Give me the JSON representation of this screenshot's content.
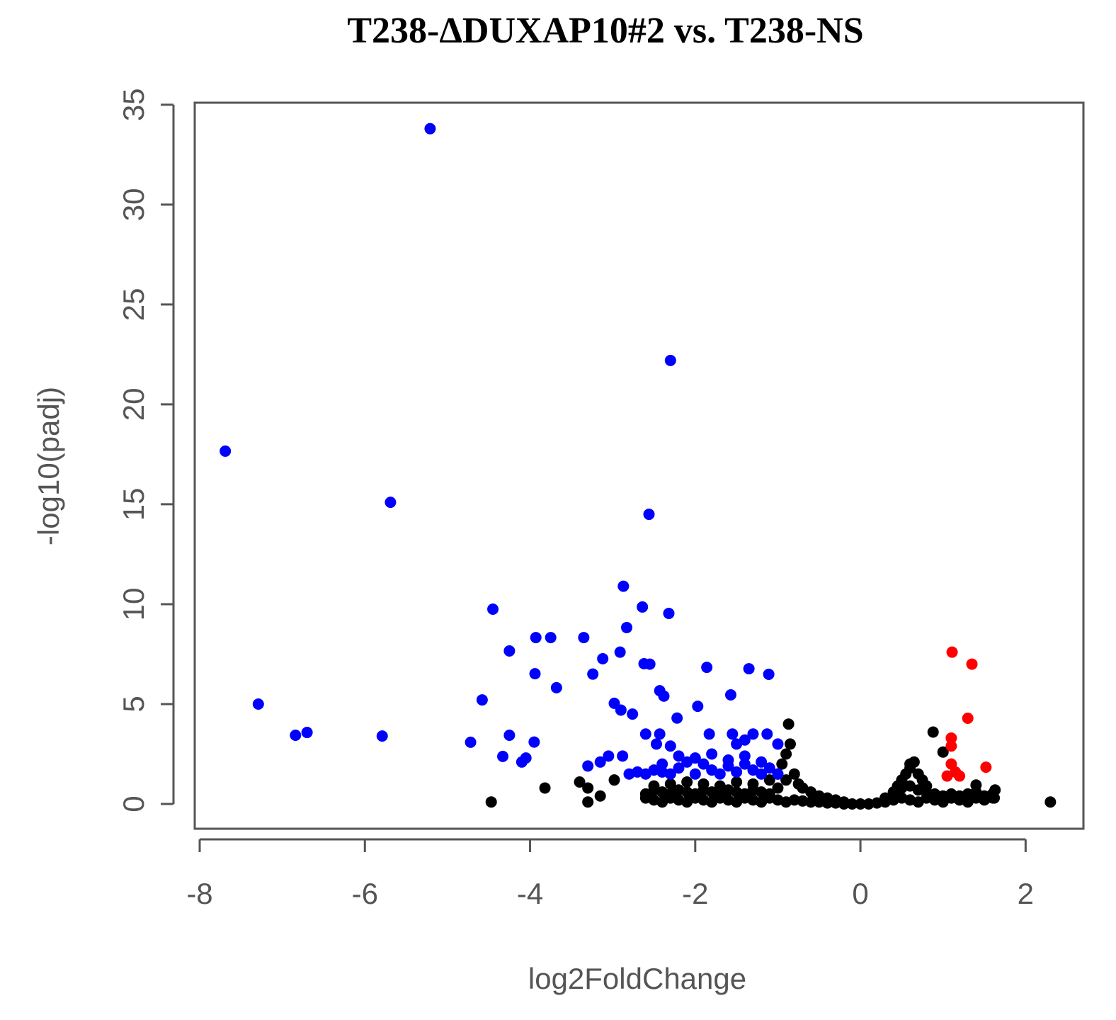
{
  "chart_data": {
    "type": "scatter",
    "title": "T238-ΔDUXAP10#2 vs. T238-NS",
    "x_label": "log2FoldChange",
    "y_label": "-log10(padj)",
    "xlim": [
      -8.06,
      2.7
    ],
    "ylim": [
      -1.24,
      35.1
    ],
    "xticks": [
      -8,
      -6,
      -4,
      -2,
      0,
      2
    ],
    "yticks": [
      0,
      5,
      10,
      15,
      20,
      25,
      30,
      35
    ],
    "series": [
      {
        "color": "#000000",
        "x": [
          -2.6,
          -2.5,
          -2.4,
          -2.3,
          -2.2,
          -2.1,
          -2.0,
          -1.9,
          -1.8,
          -1.7,
          -1.6,
          -1.5,
          -1.4,
          -1.3,
          -1.2,
          -1.1,
          -1.0,
          -0.9,
          -0.8,
          -0.7,
          -0.6,
          -0.5,
          -0.4,
          -0.3,
          -0.2,
          -0.1,
          0,
          0.1,
          0.2,
          0.3,
          0.4,
          0.5,
          0.6,
          0.7,
          0.8,
          0.9,
          1.0,
          1.1,
          1.2,
          1.3,
          1.4,
          1.5,
          1.6,
          -2.6,
          -2.5,
          -2.4,
          -2.3,
          -2.2,
          -2.1,
          -2.0,
          -1.9,
          -1.8,
          -1.7,
          -1.6,
          -1.5,
          -1.4,
          -1.3,
          -1.2,
          -1.1,
          -1.0,
          0.4,
          0.5,
          0.6,
          0.7,
          0.8,
          0.9,
          1.0,
          1.1,
          1.2,
          1.3,
          1.4,
          1.5,
          1.6,
          -2.5,
          -2.3,
          -2.1,
          -1.9,
          -1.7,
          -1.5,
          -1.3,
          -1.1,
          -1.0,
          -0.95,
          -0.9,
          -0.85,
          -0.9,
          -0.8,
          -0.75,
          -0.7,
          -0.6,
          -0.5,
          -0.4,
          -0.3,
          -0.2,
          0.3,
          0.4,
          0.45,
          0.5,
          0.55,
          0.6,
          0.7,
          0.75,
          0.8,
          -4.47,
          -3.82,
          -3.4,
          -3.3,
          -3.3,
          -3.15,
          -2.98,
          2.3,
          -0.87,
          0.88,
          1.0,
          0.65,
          0.6,
          1.4,
          1.63,
          1.62
        ],
        "values": [
          0.3,
          0.2,
          0.1,
          0.3,
          0.2,
          0.1,
          0.3,
          0.2,
          0.1,
          0.3,
          0.2,
          0.1,
          0.3,
          0.2,
          0.1,
          0.3,
          0.2,
          0.1,
          0.2,
          0.15,
          0.1,
          0.1,
          0.05,
          0.05,
          0,
          0,
          0,
          0,
          0.05,
          0.1,
          0.2,
          0.3,
          0.2,
          0.1,
          0.3,
          0.2,
          0.1,
          0.3,
          0.2,
          0.1,
          0.3,
          0.2,
          0.3,
          0.5,
          0.7,
          0.6,
          0.5,
          0.7,
          0.6,
          0.5,
          0.7,
          0.6,
          0.5,
          0.7,
          0.6,
          0.5,
          0.7,
          0.6,
          0.5,
          0.8,
          0.6,
          0.8,
          0.9,
          0.7,
          0.6,
          0.5,
          0.4,
          0.5,
          0.4,
          0.5,
          0.6,
          0.4,
          0.5,
          0.9,
          1.0,
          1.1,
          1.0,
          0.9,
          1.1,
          1.0,
          1.2,
          1.5,
          2.0,
          2.5,
          3.0,
          1.2,
          1.5,
          1.0,
          0.8,
          0.6,
          0.4,
          0.3,
          0.2,
          0.1,
          0.3,
          0.6,
          0.9,
          1.2,
          1.5,
          1.8,
          1.5,
          1.2,
          0.9,
          0.1,
          0.8,
          1.1,
          0.8,
          0.1,
          0.4,
          1.2,
          0.1,
          4.0,
          3.6,
          2.6,
          2.1,
          2.0,
          0.95,
          0.7,
          0.3
        ]
      },
      {
        "color": "#0000ff",
        "x": [
          -5.21,
          -2.3,
          -7.69,
          -5.69,
          -2.56,
          -2.87,
          -4.45,
          -2.64,
          -2.32,
          -2.83,
          -3.93,
          -3.75,
          -3.35,
          -4.25,
          -2.91,
          -3.12,
          -2.62,
          -2.55,
          -1.86,
          -1.35,
          -1.11,
          -3.94,
          -3.24,
          -3.68,
          -2.43,
          -2.38,
          -1.57,
          -4.58,
          -7.29,
          -2.98,
          -2.9,
          -2.76,
          -1.97,
          -2.22,
          -6.84,
          -6.7,
          -5.79,
          -4.72,
          -4.25,
          -3.95,
          -4.33,
          -4.05,
          -4.1,
          -2.6,
          -2.43,
          -1.83,
          -1.55,
          -1.3,
          -1.13,
          -2.47,
          -2.3,
          -1.5,
          -1.4,
          -1.0,
          -3.3,
          -3.15,
          -3.05,
          -2.88,
          -2.8,
          -2.7,
          -2.6,
          -2.5,
          -2.4,
          -2.3,
          -2.2,
          -2.1,
          -2.0,
          -1.9,
          -1.8,
          -1.7,
          -1.6,
          -1.5,
          -1.4,
          -1.3,
          -1.2,
          -1.1,
          -1.0,
          -2.4,
          -2.2,
          -2.0,
          -1.8,
          -1.6,
          -1.4,
          -1.2
        ],
        "values": [
          33.8,
          22.2,
          17.66,
          15.1,
          14.5,
          10.9,
          9.75,
          9.86,
          9.54,
          8.83,
          8.33,
          8.33,
          8.33,
          7.66,
          7.6,
          7.27,
          7.02,
          7.0,
          6.84,
          6.77,
          6.49,
          6.52,
          6.5,
          5.82,
          5.67,
          5.4,
          5.46,
          5.21,
          5.0,
          5.04,
          4.7,
          4.5,
          4.89,
          4.3,
          3.44,
          3.58,
          3.4,
          3.09,
          3.44,
          3.1,
          2.38,
          2.3,
          2.1,
          3.5,
          3.5,
          3.5,
          3.5,
          3.5,
          3.5,
          3.0,
          2.9,
          3.0,
          3.2,
          3.0,
          1.9,
          2.1,
          2.4,
          2.4,
          1.5,
          1.6,
          1.5,
          1.7,
          1.6,
          1.5,
          1.8,
          2.1,
          2.3,
          2.0,
          1.7,
          1.5,
          1.9,
          1.6,
          2.0,
          1.7,
          1.5,
          1.8,
          1.5,
          2.0,
          2.4,
          1.5,
          2.5,
          2.2,
          2.4,
          2.1
        ]
      },
      {
        "color": "#ff0000",
        "x": [
          1.11,
          1.35,
          1.3,
          1.52,
          1.1,
          1.1,
          1.1,
          1.15,
          1.2,
          1.05
        ],
        "values": [
          7.6,
          7.0,
          4.29,
          1.84,
          3.3,
          2.9,
          2.0,
          1.6,
          1.4,
          1.4
        ]
      }
    ]
  }
}
